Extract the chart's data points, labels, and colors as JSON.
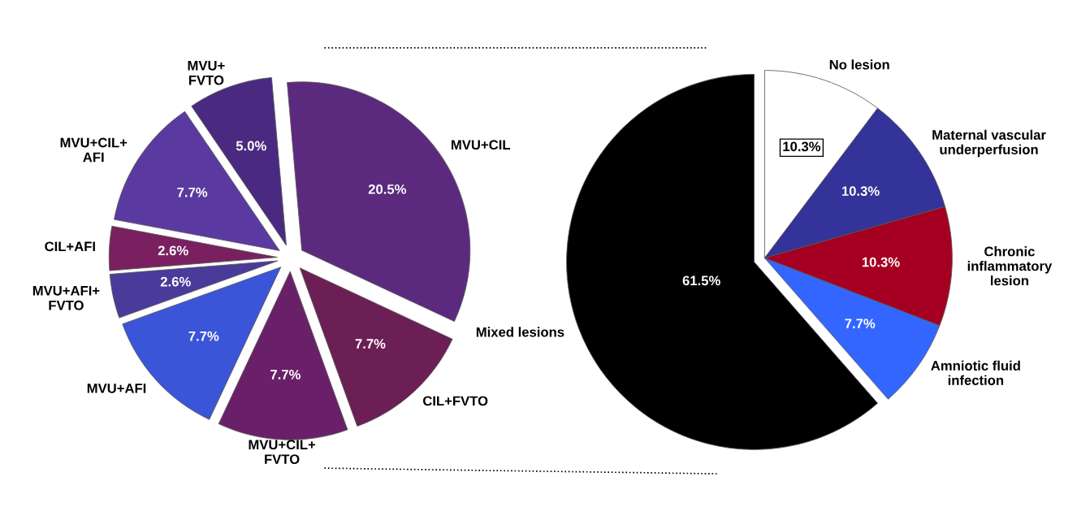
{
  "chart_data": [
    {
      "type": "pie",
      "categories": [
        "MVU+CIL",
        "CIL+FVTO",
        "MVU+CIL+\nFVTO",
        "MVU+AFI",
        "MVU+AFI+\nFVTO",
        "CIL+AFI",
        "MVU+CIL+\nAFI",
        "MVU+\nFVTO"
      ],
      "values": [
        20.5,
        7.7,
        7.7,
        7.7,
        2.6,
        2.6,
        7.7,
        5.0
      ],
      "value_labels": [
        "20.5%",
        "7.7%",
        "7.7%",
        "7.7%",
        "2.6%",
        "2.6%",
        "7.7%",
        "5.0%"
      ],
      "colors": [
        "#5b2a7e",
        "#6b1f55",
        "#6a2068",
        "#3a55d8",
        "#4a3a9a",
        "#7a2060",
        "#5a3aa0",
        "#4a2a80"
      ]
    },
    {
      "type": "pie",
      "categories": [
        "No lesion",
        "Maternal vascular\nunderperfusion",
        "Chronic\ninflammatory\nlesion",
        "Amniotic fluid\ninfection",
        "Mixed lesions"
      ],
      "values": [
        10.3,
        10.3,
        10.3,
        7.7,
        61.5
      ],
      "value_labels": [
        "10.3%",
        "10.3%",
        "10.3%",
        "7.7%",
        "61.5%"
      ],
      "colors": [
        "#ffffff",
        "#333399",
        "#a50021",
        "#3366ff",
        "#000000"
      ]
    }
  ]
}
